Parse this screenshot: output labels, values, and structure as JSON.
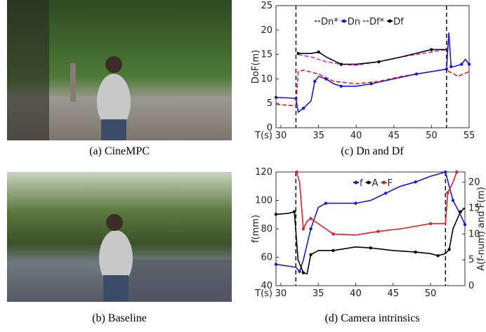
{
  "captions": {
    "a": "(a) CineMPC",
    "b": "(b) Baseline",
    "c": "(c) Dn and Df",
    "d": "(d) Camera intrinsics"
  },
  "chart_data": [
    {
      "type": "line",
      "xlabel": "T(s)",
      "ylabel": "DoF(m)",
      "xlim": [
        29.35,
        55
      ],
      "xticks": [
        30,
        35,
        40,
        45,
        50,
        55
      ],
      "ylim": [
        0,
        25
      ],
      "yticks": [
        0,
        5,
        10,
        15,
        20,
        25
      ],
      "vlines": [
        32,
        52
      ],
      "legend": "top",
      "series": [
        {
          "name": "Dn*",
          "color": "#e02020",
          "dash": true,
          "x": [
            29.35,
            31,
            32,
            32.3,
            33,
            35,
            37,
            40,
            43,
            46,
            50,
            52,
            52.3,
            53,
            53.5,
            55
          ],
          "values": [
            4.8,
            4.6,
            4.5,
            11.5,
            11.8,
            11,
            9.5,
            9,
            9.5,
            10.5,
            11.5,
            12,
            11.5,
            11,
            10.5,
            11.5
          ]
        },
        {
          "name": "Dn",
          "color": "#1a1ad0",
          "marker": true,
          "x": [
            29.35,
            31,
            32,
            32.3,
            33,
            34,
            34.5,
            35,
            36,
            37,
            38,
            40,
            42,
            45,
            48,
            50,
            52,
            52.3,
            52.6,
            53,
            54,
            54.5,
            55
          ],
          "values": [
            6.2,
            6.1,
            6,
            3.2,
            4,
            5.5,
            9.5,
            10.5,
            10,
            9,
            8.5,
            8.5,
            9,
            10,
            11,
            11.5,
            12,
            19.5,
            12.5,
            12.5,
            13,
            14,
            13
          ]
        },
        {
          "name": "Df*",
          "color": "#e020e0",
          "dash": true,
          "x": [
            32.3,
            34,
            36,
            38,
            40,
            43,
            46,
            50,
            52
          ],
          "values": [
            15,
            14.5,
            13.5,
            13,
            12.8,
            13.5,
            14.5,
            15.5,
            16
          ]
        },
        {
          "name": "Df",
          "color": "#000000",
          "marker": true,
          "x": [
            32.3,
            34,
            35,
            36,
            38,
            40,
            43,
            46,
            50,
            52
          ],
          "values": [
            15.2,
            15.2,
            15.5,
            14.5,
            13,
            13,
            13.5,
            14.5,
            16,
            16
          ]
        }
      ]
    },
    {
      "type": "line",
      "xlabel": "T(s)",
      "ylabel": "f(mm)",
      "y2label": "A(f-num) and F(m)",
      "xlim": [
        29.35,
        54.6
      ],
      "xticks": [
        30,
        35,
        40,
        45,
        50
      ],
      "ylim": [
        40,
        120
      ],
      "yticks": [
        40,
        60,
        80,
        100,
        120
      ],
      "y2lim": [
        0,
        22
      ],
      "y2ticks": [
        0,
        5,
        10,
        15,
        20
      ],
      "vlines": [
        32,
        52
      ],
      "legend": "top",
      "series": [
        {
          "name": "f",
          "color": "#1a1ad0",
          "marker": true,
          "x": [
            29.35,
            32,
            32.5,
            33,
            34,
            35,
            36,
            38,
            40,
            42,
            44,
            46,
            48,
            50,
            52,
            52.5,
            53,
            54,
            54.6
          ],
          "values": [
            55,
            53,
            50,
            58,
            80,
            95,
            98,
            98,
            98,
            100,
            105,
            110,
            113,
            117,
            120,
            110,
            100,
            90,
            83
          ]
        },
        {
          "name": "A",
          "color": "#000000",
          "marker": true,
          "axis": "y2",
          "x": [
            29.35,
            31,
            31.8,
            32.3,
            33,
            33.5,
            34,
            35,
            37,
            40,
            42,
            45,
            48,
            50,
            51,
            52,
            52.5,
            53,
            54,
            54.6
          ],
          "values": [
            13.8,
            14,
            14.3,
            5,
            2.5,
            2.3,
            6,
            6.8,
            6.8,
            7.5,
            7.3,
            6.8,
            6.5,
            6.2,
            5.8,
            6.2,
            7,
            11,
            14.3,
            15
          ]
        },
        {
          "name": "F",
          "color": "#e02020",
          "marker": true,
          "axis": "y2",
          "x": [
            32.1,
            32.5,
            33,
            33.5,
            34,
            35,
            37,
            40,
            43,
            46,
            50,
            52,
            52.3,
            53,
            53.5
          ],
          "values": [
            22,
            20,
            11,
            12.5,
            13,
            12,
            10,
            9.8,
            10.5,
            11,
            12,
            12,
            18,
            20,
            22
          ]
        }
      ]
    }
  ]
}
